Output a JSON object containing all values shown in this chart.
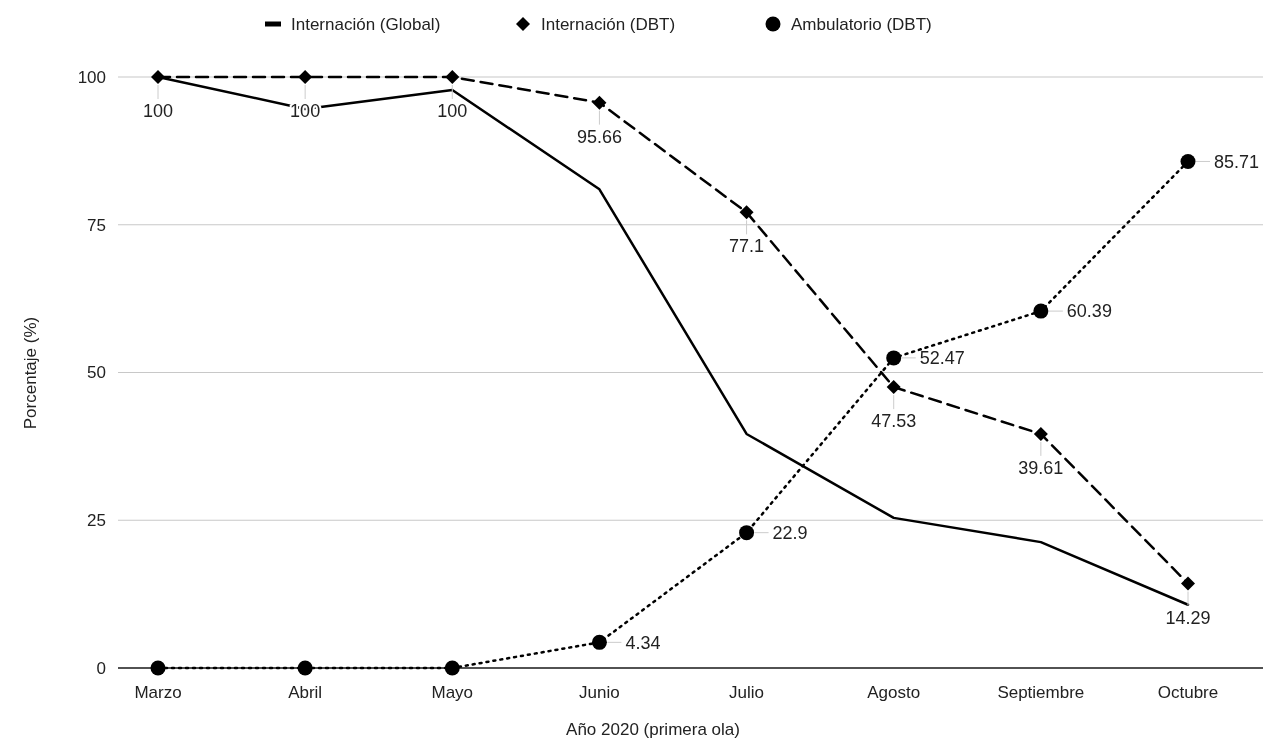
{
  "chart_data": {
    "type": "line",
    "xlabel": "Año 2020 (primera ola)",
    "ylabel": "Porcentaje (%)",
    "categories": [
      "Marzo",
      "Abril",
      "Mayo",
      "Junio",
      "Julio",
      "Agosto",
      "Septiembre",
      "Octubre"
    ],
    "ylim": [
      0,
      100
    ],
    "yticks": [
      0,
      25,
      50,
      75,
      100
    ],
    "grid": "y",
    "legend": "top",
    "series": [
      {
        "name": "Internación (Global)",
        "color": "#000000",
        "marker": "none",
        "line_style": "solid",
        "values": [
          100,
          94.6,
          97.8,
          81,
          39.6,
          25.4,
          21.3,
          10.7
        ]
      },
      {
        "name": "Internación (DBT)",
        "color": "#000000",
        "marker": "diamond",
        "line_style": "dashed",
        "values": [
          100,
          100,
          100,
          95.66,
          77.1,
          47.53,
          39.61,
          14.29
        ],
        "value_labels": [
          "100",
          "100",
          "100",
          "95.66",
          "77.1",
          "47.53",
          "39.61",
          "14.29"
        ]
      },
      {
        "name": "Ambulatorio (DBT)",
        "color": "#000000",
        "marker": "circle",
        "line_style": "dotted",
        "values": [
          0,
          0,
          0,
          4.34,
          22.9,
          52.47,
          60.39,
          85.71
        ],
        "value_labels": [
          null,
          null,
          null,
          "4.34",
          "22.9",
          "52.47",
          "60.39",
          "85.71"
        ]
      }
    ]
  }
}
